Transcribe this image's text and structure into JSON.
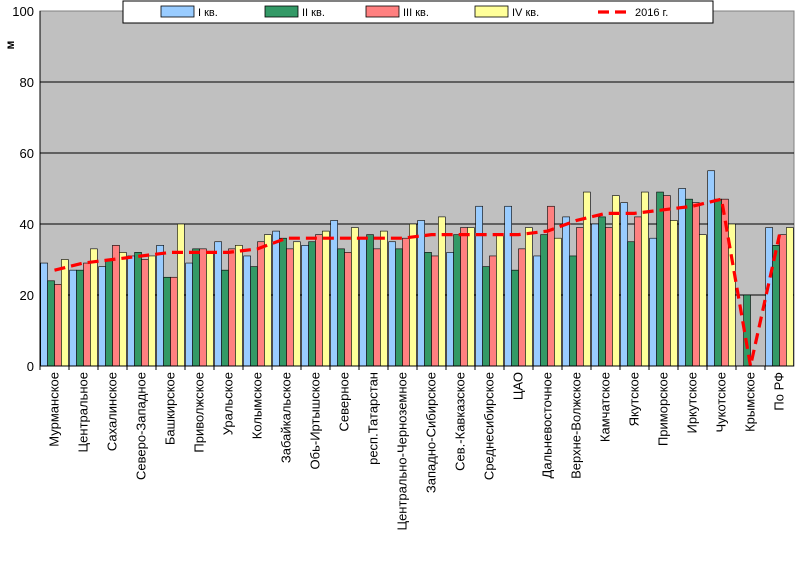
{
  "chart_data": {
    "type": "bar",
    "title": "",
    "xlabel": "",
    "ylabel": "м",
    "ylim": [
      0,
      100
    ],
    "yticks": [
      "0",
      "20",
      "40",
      "60",
      "80",
      "100"
    ],
    "grid": true,
    "legend_position": "top",
    "categories": [
      "Мурманское",
      "Центральное",
      "Сахалинское",
      "Северо-Западное",
      "Башкирское",
      "Приволжское",
      "Уральское",
      "Колымское",
      "Забайкальское",
      "Обь-Иртышское",
      "Северное",
      "респ.Татарстан",
      "Центрально-Черноземное",
      "Западно-Сибирское",
      "Сев.-Кавказское",
      "Среднесибирское",
      "ЦАО",
      "Дальневосточное",
      "Верхне-Волжское",
      "Камчатское",
      "Якутское",
      "Приморское",
      "Иркутское",
      "Чукотское",
      "Крымское",
      "По РФ"
    ],
    "series": [
      {
        "name": "I кв.",
        "color": "#99ccff",
        "values": [
          29,
          27,
          28,
          31,
          34,
          29,
          35,
          31,
          38,
          34,
          41,
          36,
          35,
          41,
          32,
          45,
          45,
          31,
          42,
          40,
          46,
          36,
          50,
          55,
          0,
          39
        ]
      },
      {
        "name": "II кв.",
        "color": "#339966",
        "values": [
          24,
          27,
          30,
          32,
          25,
          33,
          27,
          28,
          36,
          35,
          33,
          37,
          33,
          32,
          37,
          28,
          27,
          37,
          31,
          42,
          35,
          49,
          47,
          47,
          20,
          34
        ]
      },
      {
        "name": "III кв.",
        "color": "#ff8080",
        "values": [
          23,
          29,
          34,
          30,
          25,
          33,
          33,
          35,
          33,
          37,
          32,
          33,
          36,
          31,
          39,
          31,
          33,
          45,
          39,
          39,
          42,
          48,
          46,
          47,
          0,
          37
        ]
      },
      {
        "name": "IV кв.",
        "color": "#ffff99",
        "values": [
          30,
          33,
          32,
          31,
          40,
          32,
          34,
          37,
          35,
          38,
          39,
          38,
          40,
          42,
          39,
          37,
          39,
          36,
          49,
          48,
          49,
          41,
          37,
          40,
          0,
          39
        ]
      }
    ],
    "line_series": {
      "name": "2016 г.",
      "color": "#ff0000",
      "values": [
        27,
        29,
        30,
        31,
        32,
        32,
        32,
        33,
        36,
        36,
        36,
        36,
        36,
        37,
        37,
        37,
        37,
        38,
        41,
        43,
        43,
        44,
        45,
        47,
        0,
        37
      ]
    }
  }
}
